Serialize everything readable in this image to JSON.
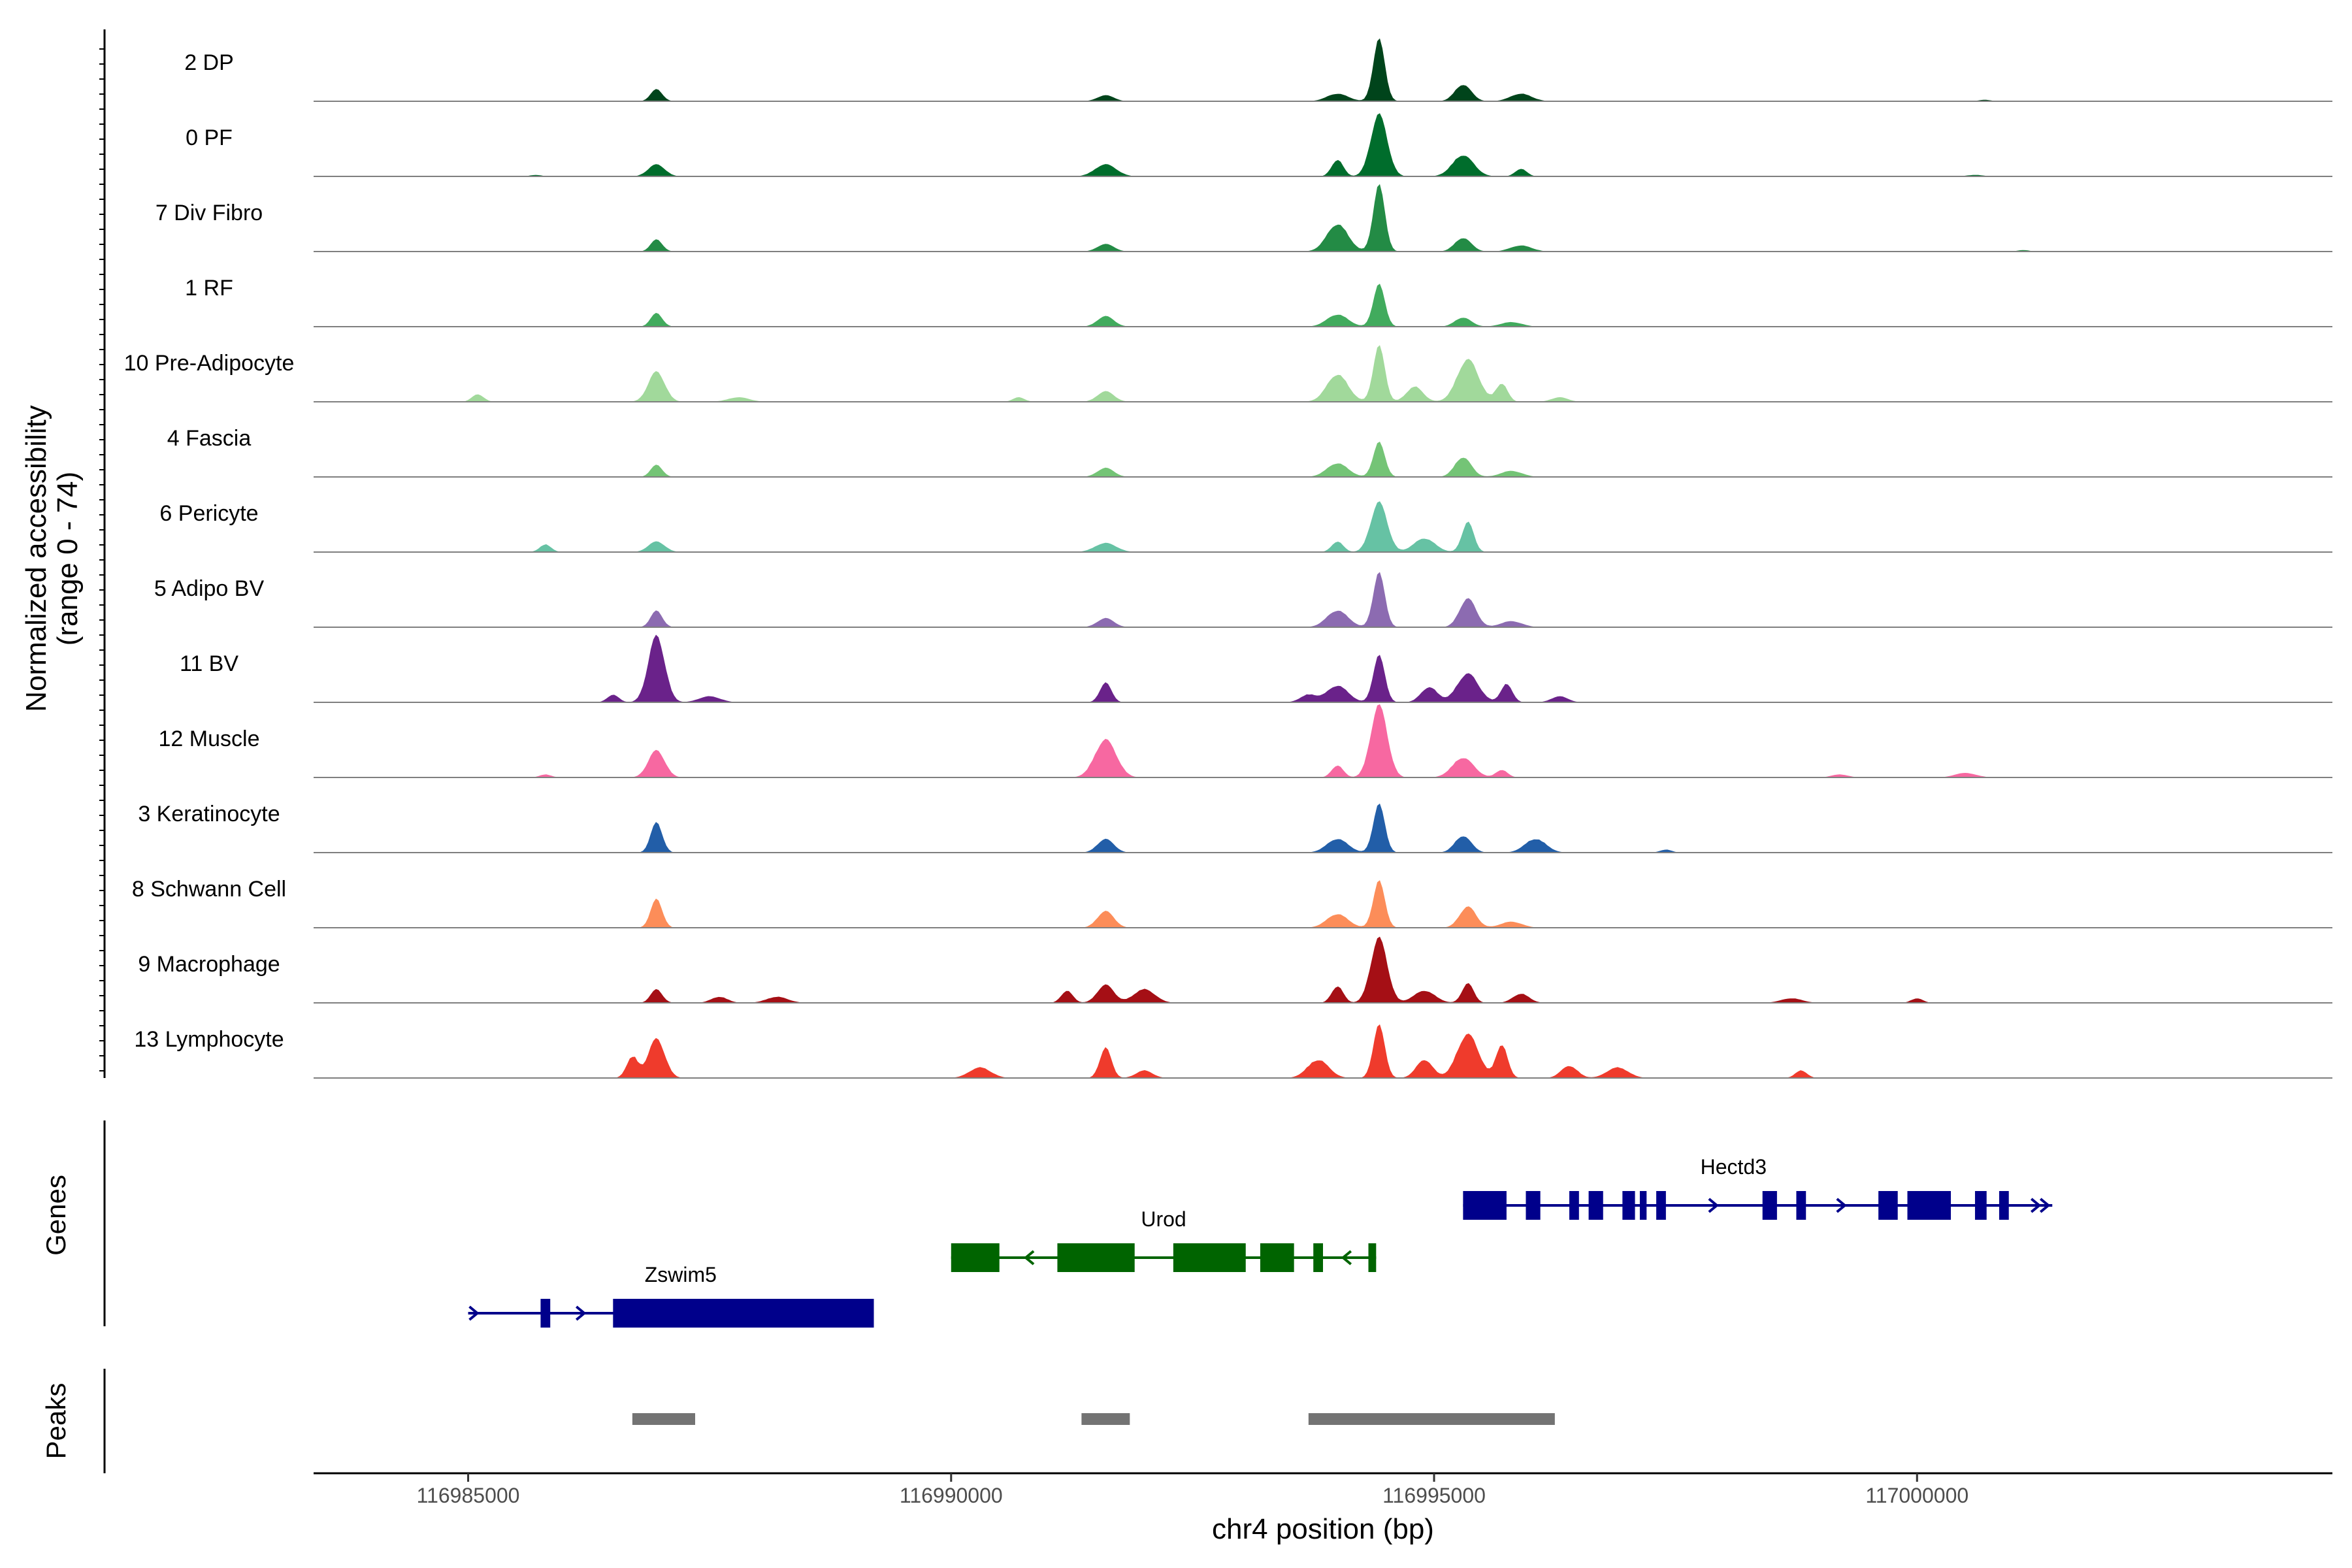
{
  "chart_data": {
    "type": "coverage",
    "title": "",
    "ylabel": "Normalized accessibility",
    "ylabel_range": "(range 0 - 74)",
    "ylim": [
      0,
      74
    ],
    "xlabel": "chr4 position (bp)",
    "xlim": [
      116983400,
      117004300
    ],
    "xticks": [
      116985000,
      116990000,
      116995000,
      117000000
    ],
    "xtick_labels": [
      "116985000",
      "116990000",
      "116995000",
      "117000000"
    ],
    "tracks": [
      {
        "name": "2 DP",
        "color": "#00441b",
        "peaks": [
          [
            116986950,
            0.16
          ],
          [
            116991600,
            0.08
          ],
          [
            116994000,
            0.1
          ],
          [
            116994430,
            0.82
          ],
          [
            116995300,
            0.22
          ],
          [
            116995900,
            0.1
          ],
          [
            117000700,
            0.02
          ]
        ]
      },
      {
        "name": "0 PF",
        "color": "#006d2c",
        "peaks": [
          [
            116985700,
            0.02
          ],
          [
            116986950,
            0.16
          ],
          [
            116991600,
            0.16
          ],
          [
            116994000,
            0.22
          ],
          [
            116994430,
            0.82
          ],
          [
            116995300,
            0.28
          ],
          [
            116995900,
            0.1
          ],
          [
            117000600,
            0.02
          ]
        ]
      },
      {
        "name": "7 Div Fibro",
        "color": "#238b45",
        "peaks": [
          [
            116986950,
            0.16
          ],
          [
            116991600,
            0.1
          ],
          [
            116994000,
            0.36
          ],
          [
            116994430,
            0.88
          ],
          [
            116995300,
            0.18
          ],
          [
            116995900,
            0.08
          ],
          [
            117001100,
            0.02
          ]
        ]
      },
      {
        "name": "1 RF",
        "color": "#41ab5d",
        "peaks": [
          [
            116986950,
            0.18
          ],
          [
            116991600,
            0.14
          ],
          [
            116994000,
            0.16
          ],
          [
            116994430,
            0.56
          ],
          [
            116995300,
            0.12
          ],
          [
            116995800,
            0.06
          ]
        ]
      },
      {
        "name": "10 Pre-Adipocyte",
        "color": "#a1d99b",
        "peaks": [
          [
            116985100,
            0.1
          ],
          [
            116986950,
            0.4
          ],
          [
            116987800,
            0.06
          ],
          [
            116990700,
            0.06
          ],
          [
            116991600,
            0.14
          ],
          [
            116994000,
            0.36
          ],
          [
            116994430,
            0.74
          ],
          [
            116994800,
            0.2
          ],
          [
            116995350,
            0.56
          ],
          [
            116995700,
            0.24
          ],
          [
            116996300,
            0.06
          ]
        ]
      },
      {
        "name": "4 Fascia",
        "color": "#74c476",
        "peaks": [
          [
            116986950,
            0.16
          ],
          [
            116991600,
            0.12
          ],
          [
            116994000,
            0.18
          ],
          [
            116994430,
            0.46
          ],
          [
            116995300,
            0.26
          ],
          [
            116995800,
            0.08
          ]
        ]
      },
      {
        "name": "6 Pericyte",
        "color": "#66c2a4",
        "peaks": [
          [
            116985800,
            0.1
          ],
          [
            116986950,
            0.14
          ],
          [
            116991600,
            0.12
          ],
          [
            116994000,
            0.14
          ],
          [
            116994430,
            0.66
          ],
          [
            116994900,
            0.18
          ],
          [
            116995350,
            0.4
          ]
        ]
      },
      {
        "name": "5 Adipo BV",
        "color": "#8c6bb1",
        "peaks": [
          [
            116986950,
            0.22
          ],
          [
            116991600,
            0.12
          ],
          [
            116994000,
            0.22
          ],
          [
            116994430,
            0.72
          ],
          [
            116995350,
            0.38
          ],
          [
            116995800,
            0.08
          ]
        ]
      },
      {
        "name": "11 BV",
        "color": "#6a228a",
        "peaks": [
          [
            116986500,
            0.1
          ],
          [
            116986950,
            0.88
          ],
          [
            116987500,
            0.08
          ],
          [
            116991600,
            0.26
          ],
          [
            116993700,
            0.1
          ],
          [
            116994000,
            0.22
          ],
          [
            116994430,
            0.62
          ],
          [
            116994950,
            0.2
          ],
          [
            116995350,
            0.38
          ],
          [
            116995750,
            0.24
          ],
          [
            116996300,
            0.08
          ]
        ]
      },
      {
        "name": "12 Muscle",
        "color": "#f768a1",
        "peaks": [
          [
            116985800,
            0.04
          ],
          [
            116986950,
            0.36
          ],
          [
            116991600,
            0.5
          ],
          [
            116994000,
            0.16
          ],
          [
            116994430,
            0.96
          ],
          [
            116995300,
            0.26
          ],
          [
            116995700,
            0.1
          ],
          [
            116999200,
            0.04
          ],
          [
            117000500,
            0.06
          ]
        ]
      },
      {
        "name": "3 Keratinocyte",
        "color": "#225ea8",
        "peaks": [
          [
            116986950,
            0.4
          ],
          [
            116991600,
            0.18
          ],
          [
            116994000,
            0.18
          ],
          [
            116994430,
            0.64
          ],
          [
            116995300,
            0.22
          ],
          [
            116996050,
            0.18
          ],
          [
            116997400,
            0.04
          ]
        ]
      },
      {
        "name": "8 Schwann Cell",
        "color": "#fc8d59",
        "peaks": [
          [
            116986950,
            0.38
          ],
          [
            116991600,
            0.22
          ],
          [
            116994000,
            0.18
          ],
          [
            116994430,
            0.62
          ],
          [
            116995350,
            0.28
          ],
          [
            116995800,
            0.08
          ]
        ]
      },
      {
        "name": "9 Macrophage",
        "color": "#a50f15",
        "peaks": [
          [
            116986950,
            0.18
          ],
          [
            116987600,
            0.08
          ],
          [
            116988200,
            0.08
          ],
          [
            116991200,
            0.16
          ],
          [
            116991600,
            0.24
          ],
          [
            116992000,
            0.18
          ],
          [
            116994000,
            0.22
          ],
          [
            116994430,
            0.86
          ],
          [
            116994900,
            0.16
          ],
          [
            116995350,
            0.26
          ],
          [
            116995900,
            0.12
          ],
          [
            116998700,
            0.06
          ],
          [
            117000000,
            0.06
          ]
        ]
      },
      {
        "name": "13 Lymphocyte",
        "color": "#ef3b2c",
        "peaks": [
          [
            116986700,
            0.28
          ],
          [
            116986950,
            0.52
          ],
          [
            116990300,
            0.14
          ],
          [
            116991600,
            0.4
          ],
          [
            116992000,
            0.1
          ],
          [
            116993800,
            0.24
          ],
          [
            116994430,
            0.7
          ],
          [
            116994900,
            0.24
          ],
          [
            116995350,
            0.58
          ],
          [
            116995700,
            0.44
          ],
          [
            116996400,
            0.16
          ],
          [
            116996900,
            0.14
          ],
          [
            116998800,
            0.1
          ]
        ]
      }
    ],
    "genes": [
      {
        "name": "Zswim5",
        "strand": "+",
        "color": "#00008b",
        "start": 116985000,
        "end": 116989200,
        "exons": [
          [
            116985750,
            116985850
          ],
          [
            116986500,
            116989200
          ]
        ]
      },
      {
        "name": "Urod",
        "strand": "-",
        "color": "#006400",
        "start": 116990000,
        "end": 116994400,
        "exons": [
          [
            116990000,
            116990500
          ],
          [
            116991100,
            116991900
          ],
          [
            116992300,
            116993050
          ],
          [
            116993200,
            116993550
          ],
          [
            116993750,
            116993850
          ],
          [
            116994320,
            116994400
          ]
        ]
      },
      {
        "name": "Hectd3",
        "strand": "+",
        "color": "#00008b",
        "start": 116995300,
        "end": 117001400,
        "exons": [
          [
            116995300,
            116995750
          ],
          [
            116995950,
            116996100
          ],
          [
            116996400,
            116996500
          ],
          [
            116996600,
            116996750
          ],
          [
            116996950,
            116997080
          ],
          [
            116997130,
            116997200
          ],
          [
            116997300,
            116997400
          ],
          [
            116998400,
            116998550
          ],
          [
            116998750,
            116998850
          ],
          [
            116999600,
            116999800
          ],
          [
            116999900,
            117000350
          ],
          [
            117000600,
            117000720
          ],
          [
            117000850,
            117000950
          ]
        ]
      }
    ],
    "peaks_track": [
      [
        116986700,
        116987350
      ],
      [
        116991350,
        116991850
      ],
      [
        116993700,
        116996250
      ]
    ],
    "panel_titles": [
      "Genes",
      "Peaks"
    ]
  }
}
